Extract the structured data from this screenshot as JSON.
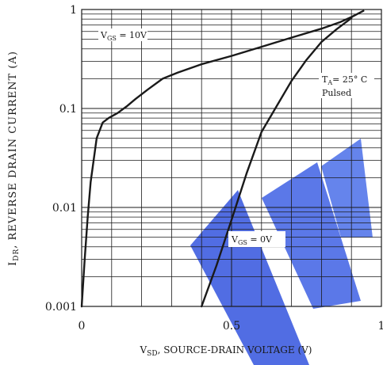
{
  "chart_data": {
    "type": "line",
    "x_scale": "linear",
    "y_scale": "log",
    "xlim": [
      0,
      1
    ],
    "ylim": [
      0.001,
      1
    ],
    "grid": true,
    "xlabel": {
      "prefix": "V",
      "subscript": "SD",
      "suffix": ", SOURCE-DRAIN VOLTAGE (V)"
    },
    "ylabel": {
      "prefix": "I",
      "subscript": "DR",
      "suffix": ", REVERSE DRAIN CURRENT (A)"
    },
    "x_ticks": [
      {
        "value": 0,
        "label": "0"
      },
      {
        "value": 0.5,
        "label": "0.5"
      },
      {
        "value": 1,
        "label": "1"
      }
    ],
    "y_ticks": [
      {
        "value": 1,
        "label": "1"
      },
      {
        "value": 0.1,
        "label": "0.1"
      },
      {
        "value": 0.01,
        "label": "0.01"
      },
      {
        "value": 0.001,
        "label": "0.001"
      }
    ],
    "series": [
      {
        "name": "VGS = 10V",
        "x": [
          0.0,
          0.01,
          0.02,
          0.03,
          0.05,
          0.07,
          0.09,
          0.12,
          0.15,
          0.18,
          0.22,
          0.27,
          0.32,
          0.4,
          0.5,
          0.6,
          0.7,
          0.8,
          0.86,
          0.9,
          0.94
        ],
        "y": [
          0.001,
          0.003,
          0.008,
          0.018,
          0.05,
          0.072,
          0.08,
          0.09,
          0.105,
          0.125,
          0.155,
          0.2,
          0.23,
          0.28,
          0.34,
          0.42,
          0.52,
          0.64,
          0.74,
          0.84,
          0.97
        ]
      },
      {
        "name": "VGS = 0V",
        "x": [
          0.4,
          0.45,
          0.5,
          0.55,
          0.6,
          0.65,
          0.7,
          0.75,
          0.8,
          0.85,
          0.9
        ],
        "y": [
          0.001,
          0.0026,
          0.0075,
          0.022,
          0.058,
          0.105,
          0.19,
          0.31,
          0.47,
          0.63,
          0.82
        ]
      }
    ],
    "annotations": {
      "vgs10": {
        "prefix": "V",
        "subscript": "GS",
        "suffix": " = 10V"
      },
      "vgs0": {
        "prefix": "V",
        "subscript": "GS",
        "suffix": " = 0V"
      },
      "ta_line1": {
        "prefix": "T",
        "subscript": "A",
        "suffix": "= 25° C"
      },
      "ta_line2": "Pulsed"
    },
    "colors": {
      "curve": "#1a1a1a",
      "grid": "#1a1a1a",
      "watermark": "#3f5ee0"
    }
  }
}
